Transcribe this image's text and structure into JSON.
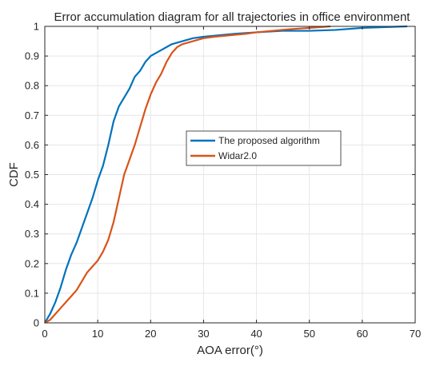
{
  "chart_data": {
    "type": "line",
    "title": "Error accumulation diagram for all trajectories in office environment",
    "xlabel": "AOA error(°)",
    "ylabel": "CDF",
    "xlim": [
      0,
      70
    ],
    "ylim": [
      0,
      1
    ],
    "xticks": [
      "0",
      "10",
      "20",
      "30",
      "40",
      "50",
      "60",
      "70"
    ],
    "yticks": [
      "0",
      "0.1",
      "0.2",
      "0.3",
      "0.4",
      "0.5",
      "0.6",
      "0.7",
      "0.8",
      "0.9",
      "1"
    ],
    "grid": true,
    "legend_position": "center-right",
    "series": [
      {
        "name": "The proposed algorithm",
        "color": "#0072BD",
        "x": [
          0,
          1,
          2,
          3,
          4,
          5,
          6,
          7,
          8,
          9,
          10,
          11,
          12,
          13,
          14,
          15,
          16,
          17,
          18,
          19,
          20,
          22,
          24,
          26,
          28,
          30,
          33,
          36,
          40,
          45,
          50,
          55,
          60,
          65,
          68.5
        ],
        "y": [
          0,
          0.03,
          0.07,
          0.12,
          0.18,
          0.23,
          0.27,
          0.32,
          0.37,
          0.42,
          0.48,
          0.53,
          0.6,
          0.68,
          0.73,
          0.76,
          0.79,
          0.83,
          0.85,
          0.88,
          0.9,
          0.92,
          0.94,
          0.95,
          0.96,
          0.965,
          0.97,
          0.975,
          0.98,
          0.985,
          0.985,
          0.988,
          0.995,
          0.998,
          1.0
        ]
      },
      {
        "name": "Widar2.0",
        "color": "#D95319",
        "x": [
          0,
          1,
          2,
          3,
          4,
          5,
          6,
          7,
          8,
          9,
          10,
          11,
          12,
          13,
          14,
          15,
          16,
          17,
          18,
          19,
          20,
          21,
          22,
          23,
          24,
          25,
          26,
          28,
          30,
          32,
          35,
          38,
          40,
          43,
          46,
          50,
          54
        ],
        "y": [
          0,
          0.01,
          0.03,
          0.05,
          0.07,
          0.09,
          0.11,
          0.14,
          0.17,
          0.19,
          0.21,
          0.24,
          0.28,
          0.34,
          0.42,
          0.5,
          0.55,
          0.6,
          0.66,
          0.72,
          0.77,
          0.81,
          0.84,
          0.88,
          0.91,
          0.93,
          0.94,
          0.95,
          0.96,
          0.965,
          0.97,
          0.975,
          0.98,
          0.985,
          0.99,
          0.995,
          1.0
        ]
      }
    ]
  }
}
